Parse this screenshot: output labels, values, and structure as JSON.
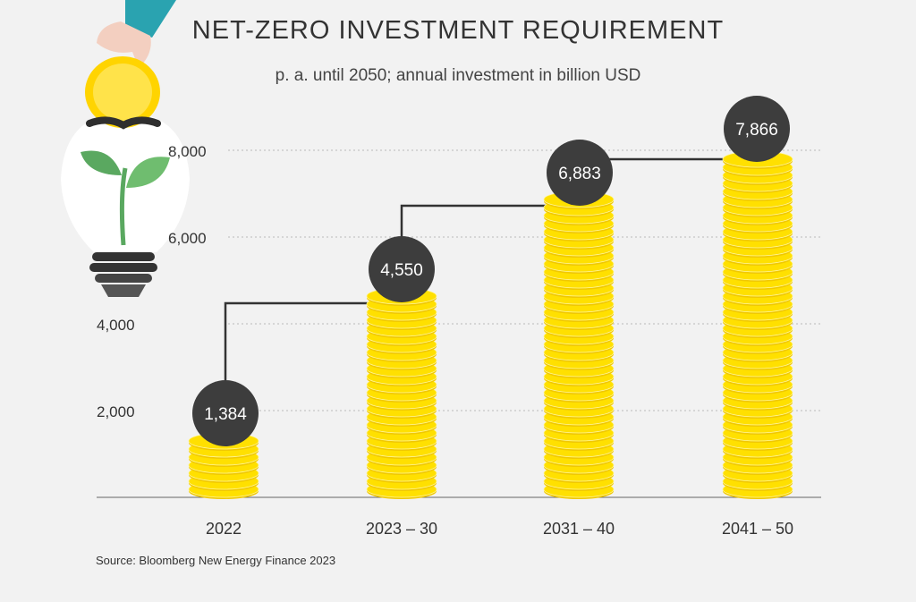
{
  "title": "NET-ZERO INVESTMENT REQUIREMENT",
  "subtitle": "p. a. until 2050; annual investment in billion USD",
  "source": "Source: Bloomberg New Energy Finance 2023",
  "colors": {
    "background": "#f2f2f2",
    "coin_fill": "#ffe000",
    "coin_edge": "#f0c800",
    "bubble": "#3d3d3d",
    "bubble_text": "#ffffff",
    "line": "#333333",
    "grid": "#bbbbbb",
    "axis": "#666666",
    "leaf": "#5aa860",
    "sleeve": "#2aa3b0"
  },
  "icons": [
    "lightbulb-plant-icon",
    "hand-icon",
    "coin-icon"
  ],
  "chart_data": {
    "type": "bar",
    "bar_style": "coin-stacks",
    "categories": [
      "2022",
      "2023 – 30",
      "2031 – 40",
      "2041 – 50"
    ],
    "values": [
      1384,
      4550,
      6883,
      7866
    ],
    "data_labels": [
      "1,384",
      "4,550",
      "6,883",
      "7,866"
    ],
    "title": "NET-ZERO INVESTMENT REQUIREMENT",
    "subtitle": "p. a. until 2050; annual investment in billion USD",
    "xlabel": "",
    "ylabel": "",
    "ylim": [
      0,
      8000
    ],
    "yticks": [
      2000,
      4000,
      6000,
      8000
    ],
    "ytick_labels": [
      "2,000",
      "4,000",
      "6,000",
      "8,000"
    ],
    "grid": true,
    "grid_style": "dotted",
    "connector": "step-line"
  }
}
